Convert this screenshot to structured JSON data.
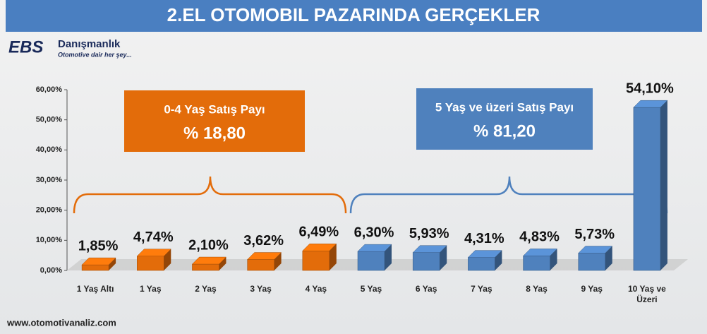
{
  "chart_data": {
    "type": "bar3d",
    "title": "2.EL OTOMOBIL PAZARINDA GERÇEKLER",
    "logo": {
      "name": "EBS",
      "company": "Danışmanlık",
      "slogan": "Otomotive dair her şey..."
    },
    "website": "www.otomotivanaliz.com",
    "categories": [
      "1 Yaş Altı",
      "1 Yaş",
      "2 Yaş",
      "3 Yaş",
      "4 Yaş",
      "5 Yaş",
      "6 Yaş",
      "7 Yaş",
      "8 Yaş",
      "9 Yaş",
      "10 Yaş ve Üzeri"
    ],
    "values": [
      1.85,
      4.74,
      2.1,
      3.62,
      6.49,
      6.3,
      5.93,
      4.31,
      4.83,
      5.73,
      54.1
    ],
    "value_labels": [
      "1,85%",
      "4,74%",
      "2,10%",
      "3,62%",
      "6,49%",
      "6,30%",
      "5,93%",
      "4,31%",
      "4,83%",
      "5,73%",
      "54,10%"
    ],
    "colors": [
      "#e36c0a",
      "#e36c0a",
      "#e36c0a",
      "#e36c0a",
      "#e36c0a",
      "#4f81bd",
      "#4f81bd",
      "#4f81bd",
      "#4f81bd",
      "#4f81bd",
      "#4f81bd"
    ],
    "ylim": [
      0,
      60
    ],
    "yticks": [
      {
        "value": 0,
        "label": "0,00%"
      },
      {
        "value": 10,
        "label": "10,00%"
      },
      {
        "value": 20,
        "label": "20,00%"
      },
      {
        "value": 30,
        "label": "30,00%"
      },
      {
        "value": 40,
        "label": "40,00%"
      },
      {
        "value": 50,
        "label": "50,00%"
      },
      {
        "value": 60,
        "label": "60,00%"
      }
    ],
    "annotations": [
      {
        "title": "0-4 Yaş Satış Payı",
        "text": "% 18,80",
        "color": "#e36c0a"
      },
      {
        "title": "5 Yaş ve üzeri Satış Payı",
        "text": "% 81,20",
        "color": "#4f81bd"
      }
    ]
  }
}
